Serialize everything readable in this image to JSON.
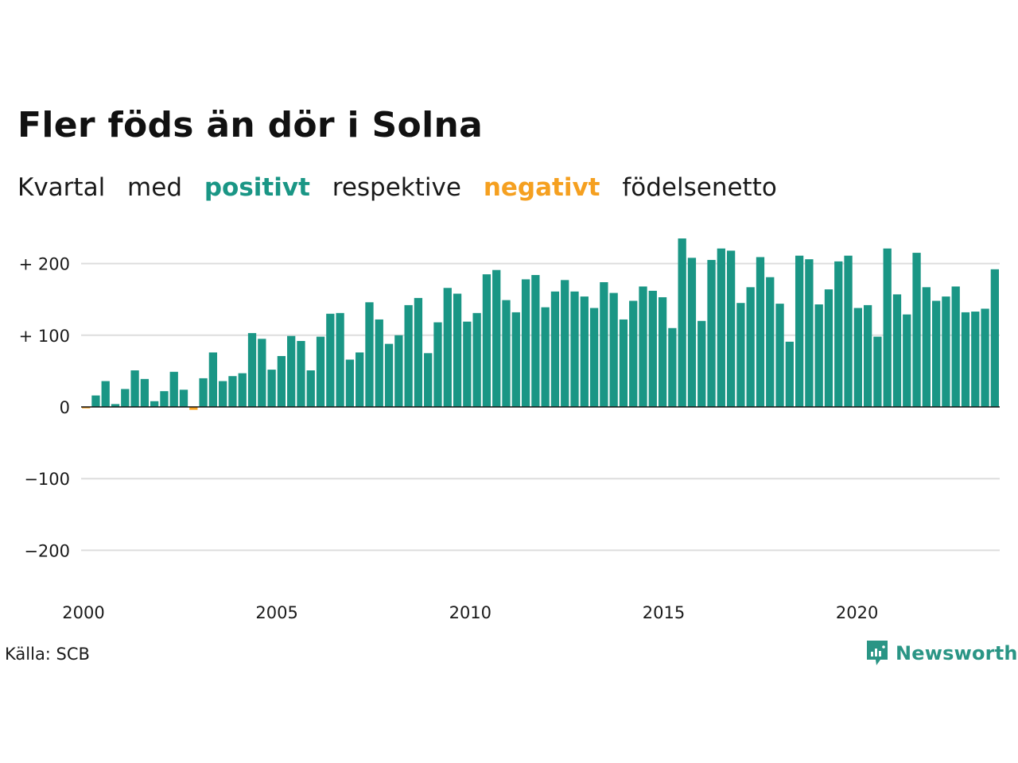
{
  "title": "Fler föds än dör i Solna",
  "subtitle": {
    "part1": "Kvartal",
    "part2": "med",
    "positive_word": "positivt",
    "part3": "respektive",
    "negative_word": "negativt",
    "part4": "födelsenetto"
  },
  "source": "Källa: SCB",
  "brand": "Newsworthy",
  "colors": {
    "positive": "#1a9685",
    "negative": "#f5a020",
    "grid": "#dddddd",
    "baseline": "#111111",
    "brand": "#2a9585"
  },
  "chart_data": {
    "type": "bar",
    "x_start": 2000,
    "x_end": 2023.75,
    "bar_period": "quarter",
    "ylim": [
      -250,
      240
    ],
    "y_ticks": [
      {
        "value": 200,
        "label": "+ 200"
      },
      {
        "value": 100,
        "label": "+ 100"
      },
      {
        "value": 0,
        "label": "0"
      },
      {
        "value": -100,
        "label": "−100"
      },
      {
        "value": -200,
        "label": "−200"
      }
    ],
    "x_ticks": [
      {
        "value": 2000,
        "label": "2000"
      },
      {
        "value": 2005,
        "label": "2005"
      },
      {
        "value": 2010,
        "label": "2010"
      },
      {
        "value": 2015,
        "label": "2015"
      },
      {
        "value": 2020,
        "label": "2020"
      }
    ],
    "grid": true,
    "legend": "none",
    "values": [
      -2,
      16,
      36,
      4,
      25,
      51,
      39,
      8,
      22,
      49,
      24,
      -4,
      40,
      76,
      36,
      43,
      47,
      103,
      95,
      52,
      71,
      99,
      92,
      51,
      98,
      130,
      131,
      66,
      76,
      146,
      122,
      88,
      100,
      142,
      152,
      75,
      118,
      166,
      158,
      119,
      131,
      185,
      191,
      149,
      132,
      178,
      184,
      139,
      161,
      177,
      161,
      154,
      138,
      174,
      159,
      122,
      148,
      168,
      162,
      153,
      110,
      235,
      208,
      120,
      205,
      221,
      218,
      145,
      167,
      209,
      181,
      144,
      91,
      211,
      206,
      143,
      164,
      203,
      211,
      138,
      142,
      98,
      221,
      157,
      129,
      215,
      167,
      148,
      154,
      168,
      132,
      133,
      137,
      192
    ]
  }
}
